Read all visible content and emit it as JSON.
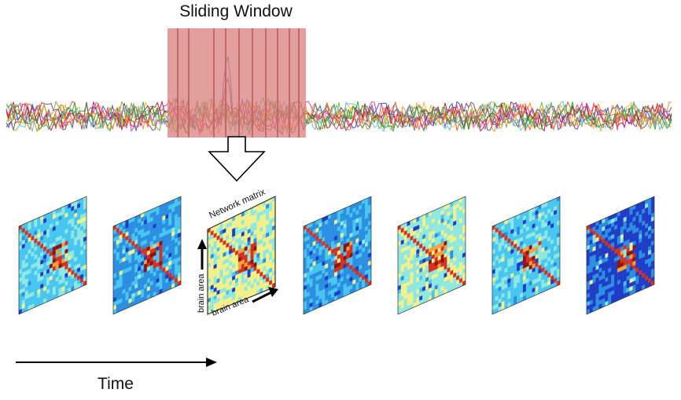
{
  "labels": {
    "sliding_window": "Sliding Window",
    "time": "Time",
    "network_matrix": "Network matrix",
    "brain_area_x": "brain area",
    "brain_area_y": "brain area"
  },
  "colors": {
    "window_fill": "#d97f7c",
    "window_stripe": "#c26462",
    "trace_colors": [
      "#1f4fb4",
      "#d95319",
      "#edb120",
      "#7e2f8e",
      "#77ac30",
      "#4dbeee",
      "#a2142f",
      "#e8318c",
      "#2ca02c",
      "#ff7f0e"
    ],
    "matrix_palette": [
      "#1e3cc8",
      "#2c8ee0",
      "#46c6f0",
      "#8ee8e0",
      "#f2f08a",
      "#f2a23c",
      "#d8301e",
      "#8a1410"
    ],
    "arrow": "#000000"
  },
  "matrices": {
    "count": 7,
    "highlighted_index": 2,
    "tones": [
      "cyan",
      "blue",
      "warm",
      "blue",
      "yellow",
      "cyan",
      "blue-dark"
    ]
  }
}
